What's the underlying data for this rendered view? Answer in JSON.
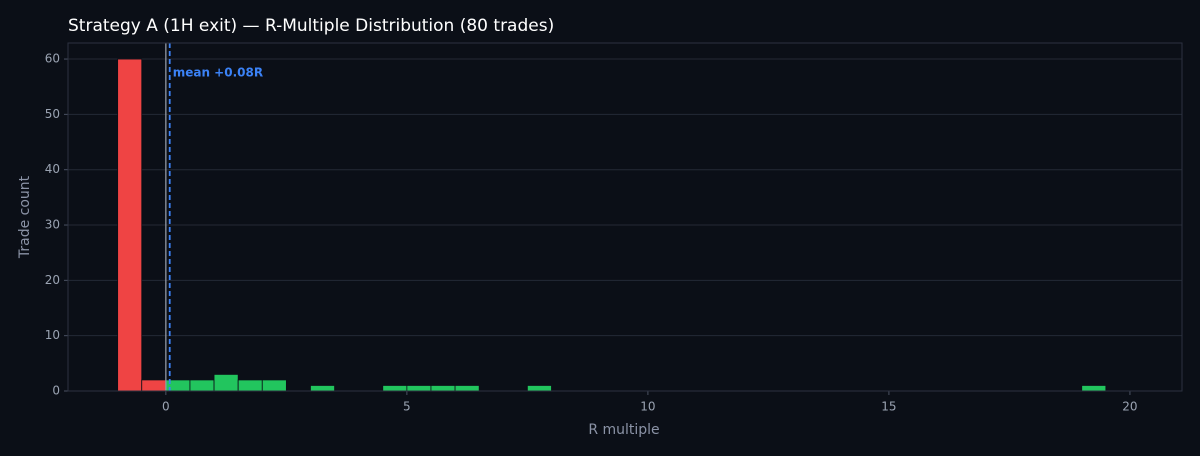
{
  "chart_data": {
    "type": "histogram",
    "title": "Strategy A (1H exit) — R-Multiple Distribution (80 trades)",
    "x_label": "R multiple",
    "y_label": "Trade count",
    "bins": [
      -1,
      -0.5,
      0,
      0.5,
      1,
      1.5,
      2,
      2.5,
      3,
      3.5,
      4,
      4.5,
      5,
      5.5,
      6,
      6.5,
      7,
      7.5,
      8,
      8.5,
      9,
      9.5,
      10,
      10.5,
      11,
      11.5,
      12,
      12.5,
      13,
      13.5,
      14,
      14.5,
      15,
      15.5,
      16,
      16.5,
      17,
      17.5,
      18,
      18.5,
      19,
      19.5
    ],
    "values": [
      60,
      2,
      2,
      2,
      3,
      2,
      2,
      0,
      1,
      0,
      0,
      1,
      1,
      1,
      1,
      0,
      0,
      1,
      0,
      0,
      0,
      0,
      0,
      0,
      0,
      0,
      0,
      0,
      0,
      0,
      0,
      0,
      0,
      0,
      0,
      0,
      0,
      0,
      0,
      0,
      1
    ],
    "negative_color": "#ef4444",
    "positive_color": "#22c55e",
    "zero_line": 0,
    "zero_line_color": "#9ca3af",
    "mean": 0.08,
    "mean_label": "mean +0.08R",
    "mean_color": "#3b82f6",
    "xlim": [
      -2.03,
      21.08
    ],
    "xticks": [
      0,
      5,
      10,
      15,
      20
    ],
    "ylim": [
      0,
      62.9
    ],
    "yticks": [
      0,
      10,
      20,
      30,
      40,
      50,
      60
    ],
    "grid": true
  }
}
